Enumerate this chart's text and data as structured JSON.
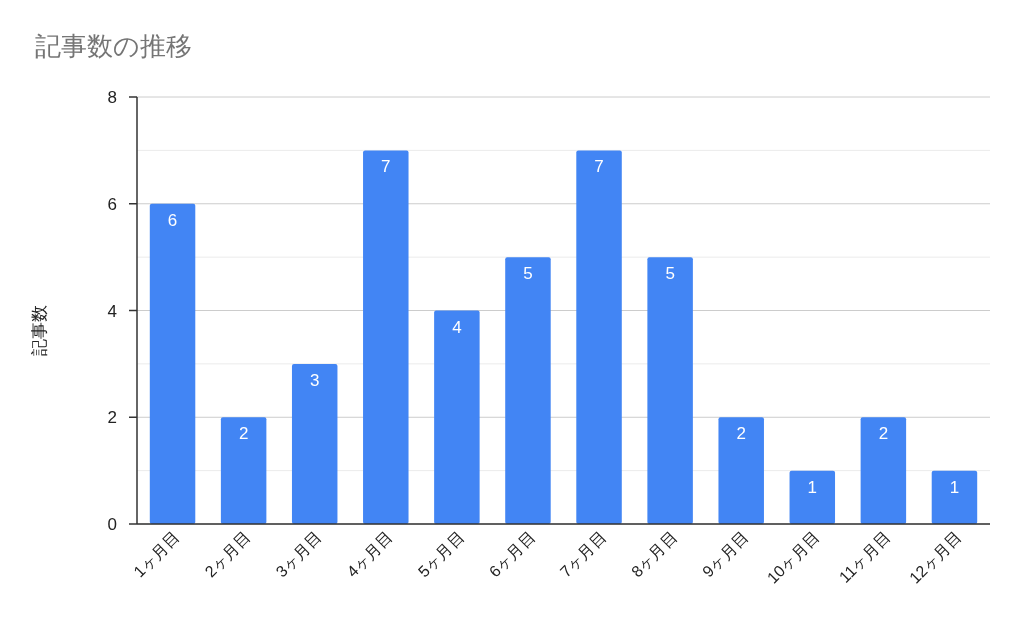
{
  "chart_data": {
    "type": "bar",
    "title": "記事数の推移",
    "ylabel": "記事数",
    "categories": [
      "1ヶ月目",
      "2ヶ月目",
      "3ヶ月目",
      "4ヶ月目",
      "5ヶ月目",
      "6ヶ月目",
      "7ヶ月目",
      "8ヶ月目",
      "9ヶ月目",
      "10ヶ月目",
      "11ヶ月目",
      "12ヶ月目"
    ],
    "values": [
      6,
      2,
      3,
      7,
      4,
      5,
      7,
      5,
      2,
      1,
      2,
      1
    ],
    "color": "#4285f4",
    "ylim": [
      0,
      8
    ],
    "yticks": [
      0,
      {
        "value": 1,
        "label": null
      },
      2,
      {
        "value": 3,
        "label": null
      },
      4,
      {
        "value": 5,
        "label": null
      },
      6,
      {
        "value": 7,
        "label": null
      },
      8
    ],
    "grid": "y",
    "data_labels": true
  }
}
